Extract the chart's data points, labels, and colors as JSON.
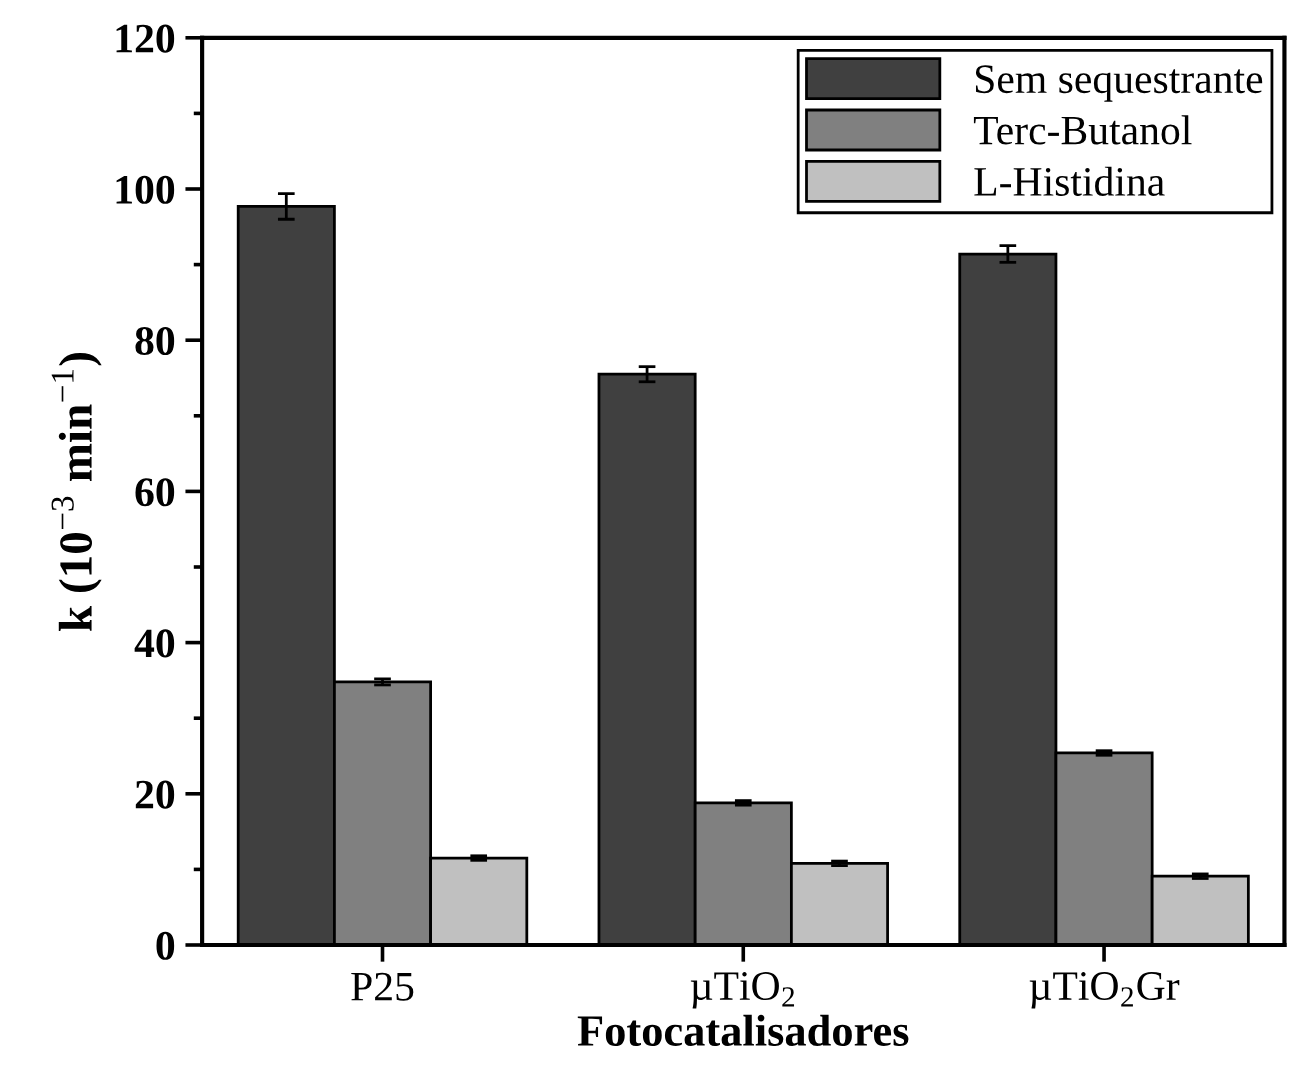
{
  "chart_data": {
    "type": "bar",
    "xlabel": "Fotocatalisadores",
    "ylabel": "k (10$^{−3}$ min$^{−1}$)",
    "categories": [
      "P25",
      "µTiO$_{2}$",
      "µTiO$_{2}$Gr"
    ],
    "series": [
      {
        "name": "Sem sequestrante",
        "color": "#404040",
        "values": [
          97.7,
          75.5,
          91.4
        ],
        "errors": [
          1.7,
          1.0,
          1.1
        ]
      },
      {
        "name": "Terc-Butanol",
        "color": "#808080",
        "values": [
          34.8,
          18.8,
          25.4
        ],
        "errors": [
          0.4,
          0.3,
          0.3
        ]
      },
      {
        "name": "L-Histidina",
        "color": "#c0c0c0",
        "values": [
          11.5,
          10.8,
          9.1
        ],
        "errors": [
          0.3,
          0.3,
          0.3
        ]
      }
    ],
    "ylim": [
      0,
      120
    ],
    "yticks": [
      0,
      20,
      40,
      60,
      80,
      100,
      120
    ],
    "grid": false,
    "legend": "top right"
  }
}
